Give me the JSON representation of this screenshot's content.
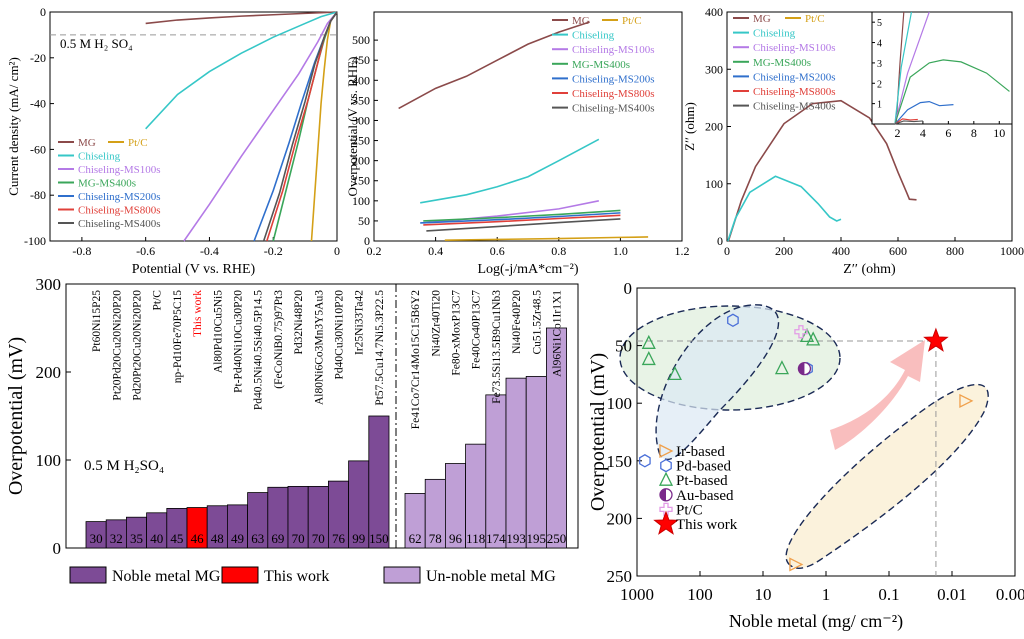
{
  "colors": {
    "MG": "#8b4a4a",
    "PtC": "#d4a017",
    "Chiseling": "#36c7c7",
    "Chiseling-MS100s": "#b47ae6",
    "MG-MS400s": "#3aa65a",
    "Chiseling-MS200s": "#2f6fcc",
    "Chiseling-MS800s": "#e0403a",
    "Chiseling-MS400s": "#555555",
    "noble": "#7d4b96",
    "thiswork": "#ff0000",
    "unnoble": "#bf9fd6"
  },
  "legend_labels": {
    "MG": "MG",
    "PtC": "Pt/C",
    "Chiseling": "Chiseling",
    "Chiseling-MS100s": "Chiseling-MS100s",
    "MG-MS400s": "MG-MS400s",
    "Chiseling-MS200s": "Chiseling-MS200s",
    "Chiseling-MS800s": "Chiseling-MS800s",
    "Chiseling-MS400s": "Chiseling-MS400s"
  },
  "chart_data": [
    {
      "type": "line",
      "id": "lsv",
      "xlabel": "Potential (V vs. RHE)",
      "ylabel": "Current density (mA/ cm²)",
      "xlim": [
        -0.9,
        0.0
      ],
      "ylim": [
        -100,
        0
      ],
      "xticks": [
        "-0.8",
        "-0.6",
        "-0.4",
        "-0.2",
        "0"
      ],
      "yticks": [
        "0",
        "-20",
        "-40",
        "-60",
        "-80",
        "-100"
      ],
      "annotation": "0.5 M  H₂ SO₄",
      "series": [
        {
          "name": "MG",
          "x": [
            -0.6,
            -0.5,
            -0.4,
            -0.3,
            -0.2,
            -0.1,
            -0.05,
            0
          ],
          "y": [
            -5,
            -3.5,
            -2.6,
            -1.8,
            -1.2,
            -0.6,
            -0.3,
            0
          ]
        },
        {
          "name": "Pt/C",
          "x": [
            -0.08,
            -0.07,
            -0.06,
            -0.05,
            -0.04,
            -0.03,
            -0.02,
            0
          ],
          "y": [
            -100,
            -80,
            -60,
            -40,
            -25,
            -12,
            -4,
            0
          ]
        },
        {
          "name": "Chiseling",
          "x": [
            -0.6,
            -0.5,
            -0.4,
            -0.3,
            -0.2,
            -0.1,
            -0.05,
            0
          ],
          "y": [
            -51,
            -36,
            -26,
            -18,
            -11,
            -5,
            -2,
            0
          ]
        },
        {
          "name": "Chiseling-MS100s",
          "x": [
            -0.48,
            -0.4,
            -0.3,
            -0.2,
            -0.12,
            -0.06,
            -0.03,
            0
          ],
          "y": [
            -100,
            -84,
            -63,
            -43,
            -27,
            -13,
            -5,
            0
          ]
        },
        {
          "name": "MG-MS400s",
          "x": [
            -0.2,
            -0.16,
            -0.12,
            -0.09,
            -0.06,
            -0.04,
            -0.02,
            0
          ],
          "y": [
            -100,
            -78,
            -56,
            -38,
            -22,
            -12,
            -4,
            0
          ]
        },
        {
          "name": "Chiseling-MS200s",
          "x": [
            -0.26,
            -0.2,
            -0.15,
            -0.11,
            -0.07,
            -0.04,
            -0.02,
            0
          ],
          "y": [
            -100,
            -78,
            -57,
            -39,
            -22,
            -11,
            -4,
            0
          ]
        },
        {
          "name": "Chiseling-MS800s",
          "x": [
            -0.22,
            -0.17,
            -0.13,
            -0.09,
            -0.06,
            -0.04,
            -0.02,
            0
          ],
          "y": [
            -100,
            -78,
            -57,
            -38,
            -22,
            -11,
            -4,
            0
          ]
        },
        {
          "name": "Chiseling-MS400s",
          "x": [
            -0.23,
            -0.18,
            -0.14,
            -0.1,
            -0.07,
            -0.04,
            -0.02,
            0
          ],
          "y": [
            -100,
            -79,
            -58,
            -39,
            -23,
            -11,
            -4,
            0
          ]
        }
      ]
    },
    {
      "type": "line",
      "id": "tafel",
      "xlabel": "Log(-j/mA*cm⁻²)",
      "ylabel": "Overpotential (V vs. RHE)",
      "xlim": [
        0.2,
        1.2
      ],
      "ylim": [
        0,
        570
      ],
      "xticks": [
        "0.2",
        "0.4",
        "0.6",
        "0.8",
        "1.0",
        "1.2"
      ],
      "yticks": [
        "0",
        "50",
        "100",
        "150",
        "200",
        "250",
        "300",
        "350",
        "400",
        "450",
        "500"
      ],
      "series": [
        {
          "name": "MG",
          "x": [
            0.28,
            0.4,
            0.5,
            0.6,
            0.7,
            0.8,
            0.9
          ],
          "y": [
            330,
            380,
            410,
            450,
            490,
            520,
            545
          ]
        },
        {
          "name": "Pt/C",
          "x": [
            0.43,
            0.6,
            0.8,
            1.0,
            1.09
          ],
          "y": [
            2,
            4,
            6,
            9,
            10
          ]
        },
        {
          "name": "Chiseling",
          "x": [
            0.35,
            0.5,
            0.6,
            0.7,
            0.8,
            0.93
          ],
          "y": [
            95,
            115,
            135,
            160,
            200,
            253
          ]
        },
        {
          "name": "Chiseling-MS100s",
          "x": [
            0.36,
            0.6,
            0.8,
            0.93
          ],
          "y": [
            45,
            62,
            80,
            100
          ]
        },
        {
          "name": "MG-MS400s",
          "x": [
            0.36,
            0.6,
            0.8,
            1.0
          ],
          "y": [
            50,
            58,
            66,
            76
          ]
        },
        {
          "name": "Chiseling-MS200s",
          "x": [
            0.35,
            0.6,
            0.8,
            1.0
          ],
          "y": [
            45,
            53,
            61,
            70
          ]
        },
        {
          "name": "Chiseling-MS800s",
          "x": [
            0.36,
            0.6,
            0.8,
            1.0
          ],
          "y": [
            40,
            48,
            56,
            64
          ]
        },
        {
          "name": "Chiseling-MS400s",
          "x": [
            0.37,
            0.6,
            0.8,
            1.0
          ],
          "y": [
            25,
            36,
            46,
            55
          ]
        }
      ]
    },
    {
      "type": "line",
      "id": "eis",
      "xlabel": "Z′′ (ohm)",
      "ylabel": "Z′′ (ohm)",
      "xlim": [
        0,
        1000
      ],
      "ylim": [
        0,
        400
      ],
      "xticks": [
        "0",
        "200",
        "400",
        "600",
        "800",
        "1000"
      ],
      "yticks": [
        "0",
        "100",
        "200",
        "300",
        "400"
      ],
      "inset": {
        "xlim": [
          0,
          11
        ],
        "ylim": [
          0,
          5.5
        ],
        "xticks": [
          "2",
          "4",
          "6",
          "8",
          "10"
        ],
        "yticks": [
          "1",
          "2",
          "3",
          "4",
          "5"
        ]
      },
      "series": [
        {
          "name": "MG",
          "x": [
            5,
            50,
            100,
            200,
            300,
            400,
            500,
            560,
            600,
            630,
            640,
            665
          ],
          "y": [
            0,
            70,
            130,
            205,
            240,
            245,
            215,
            170,
            120,
            85,
            73,
            72
          ]
        },
        {
          "name": "Chiseling",
          "x": [
            3,
            30,
            80,
            170,
            260,
            320,
            360,
            385,
            400
          ],
          "y": [
            0,
            40,
            85,
            113,
            95,
            65,
            42,
            35,
            38
          ]
        }
      ],
      "inset_series": [
        {
          "name": "MG",
          "x": [
            1.9,
            2.2,
            2.5
          ],
          "y": [
            0,
            3,
            5.5
          ]
        },
        {
          "name": "Chiseling",
          "x": [
            1.8,
            2.3,
            3.1
          ],
          "y": [
            0,
            2.8,
            5.5
          ]
        },
        {
          "name": "Chiseling-MS100s",
          "x": [
            1.8,
            2.8,
            4.5
          ],
          "y": [
            0,
            2.5,
            5.5
          ]
        },
        {
          "name": "MG-MS400s",
          "x": [
            1.8,
            3.0,
            4.5,
            5.6,
            7.0,
            9.0,
            10.8
          ],
          "y": [
            0,
            2.3,
            3.0,
            3.15,
            3.05,
            2.5,
            1.6
          ]
        },
        {
          "name": "Chiseling-MS200s",
          "x": [
            1.8,
            2.8,
            3.8,
            4.5,
            5.3,
            6.4
          ],
          "y": [
            0,
            0.7,
            1.05,
            1.1,
            0.9,
            0.95
          ]
        },
        {
          "name": "Chiseling-MS800s",
          "x": [
            1.8,
            2.4,
            3.0,
            3.6
          ],
          "y": [
            0,
            0.25,
            0.2,
            0.22
          ]
        },
        {
          "name": "Chiseling-MS400s",
          "x": [
            1.8,
            2.5,
            3.3,
            4.0
          ],
          "y": [
            0,
            0.15,
            0.12,
            0.15
          ]
        }
      ]
    },
    {
      "type": "bar",
      "id": "overpotential-bars",
      "ylabel": "Overpotential (mV)",
      "ylim": [
        0,
        300
      ],
      "yticks": [
        "0",
        "100",
        "200",
        "300"
      ],
      "annotation": "0.5 M H₂SO₄",
      "categories": [
        "Pt60Ni15P25",
        "Pt20Pd20Cu20Ni20P20",
        "Pd20Pt20Cu20Ni20P20",
        "Pt/C",
        "np-Pd10Fe70P5C15",
        "This work",
        "Al80Pd10Cu5Ni5",
        "Pt-Pd40Ni10Cu30P20",
        "Pd40.5Ni40.5Si40.5P14.5",
        "(FeCoNiB0.75)97Pt3",
        "Pd32Ni48P20",
        "Al80Ni6Co3Mn3Y5Au3",
        "Pd40Cu30Ni10P20",
        "Ir25Ni33Ta42",
        "Pt57.5Cu14.7Ni5.3P22.5",
        "Fe41Co7Cr14Mo15C15B6Y2",
        "Ni40Zr40Ti20",
        "Fe80-xMoxP13C7",
        "Fe40Co40P13C7",
        "Fe73.5Si13.5B9Cu1Nb3",
        "Ni40Fe40P20",
        "Cu51.5Zr48.5",
        "Al96Ni1Co1Ir1X1"
      ],
      "values": [
        30,
        32,
        35,
        40,
        45,
        46,
        48,
        49,
        63,
        69,
        70,
        70,
        76,
        99,
        150,
        62,
        78,
        96,
        118,
        174,
        193,
        195,
        250
      ],
      "groups": [
        "noble",
        "noble",
        "noble",
        "noble",
        "noble",
        "thiswork",
        "noble",
        "noble",
        "noble",
        "noble",
        "noble",
        "noble",
        "noble",
        "noble",
        "noble",
        "unnoble",
        "unnoble",
        "unnoble",
        "unnoble",
        "unnoble",
        "unnoble",
        "unnoble",
        "unnoble"
      ],
      "legend": [
        "Noble metal MG",
        "This work",
        "Un-noble metal MG"
      ]
    },
    {
      "type": "scatter",
      "id": "noble-loading",
      "xlabel": "Noble metal (mg/ cm⁻²)",
      "ylabel": "Overpotential (mV)",
      "xscale": "log-reversed",
      "xlim": [
        1000,
        0.001
      ],
      "ylim": [
        0,
        250
      ],
      "xticks": [
        "1000",
        "100",
        "10",
        "1",
        "0.1",
        "0.01",
        "0.001"
      ],
      "yticks": [
        "0",
        "50",
        "100",
        "150",
        "200",
        "250"
      ],
      "series": [
        {
          "name": "Ir-based",
          "x": [
            0.006,
            3
          ],
          "y": [
            98,
            240
          ]
        },
        {
          "name": "Pd-based",
          "x": [
            750,
            30,
            2
          ],
          "y": [
            150,
            28,
            70
          ]
        },
        {
          "name": "Pt-based",
          "x": [
            650,
            650,
            250,
            5,
            2,
            1.6
          ],
          "y": [
            48,
            62,
            75,
            70,
            42,
            45
          ]
        },
        {
          "name": "Au-based",
          "x": [
            2.2
          ],
          "y": [
            70
          ]
        },
        {
          "name": "Pt/C",
          "x": [
            2.5
          ],
          "y": [
            38
          ]
        },
        {
          "name": "This work",
          "x": [
            0.018
          ],
          "y": [
            46
          ]
        }
      ],
      "legend": [
        "Ir-based",
        "Pd-based",
        "Pt-based",
        "Au-based",
        "Pt/C",
        "This work"
      ]
    }
  ]
}
